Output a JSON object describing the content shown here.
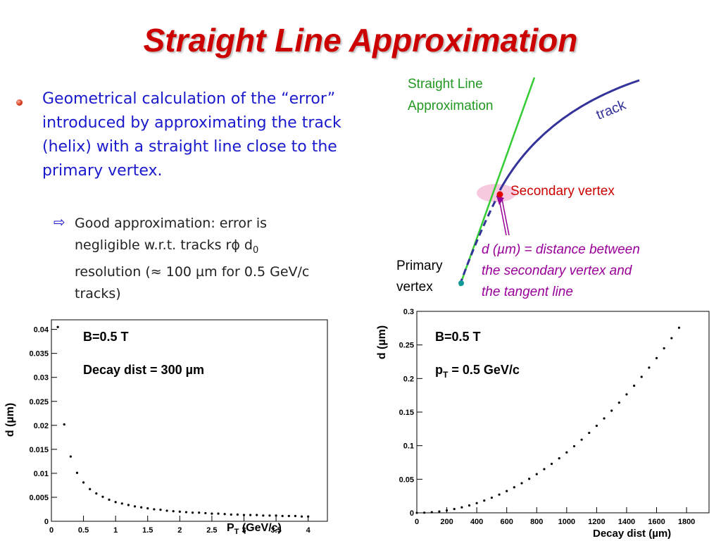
{
  "slide": {
    "title": "Straight Line Approximation",
    "bullet_main": "Geometrical calculation of the “error” introduced by approximating the track (helix) with a straight line close to the primary vertex.",
    "bullet_sub_part1": "Good approximation: error is negligible w.r.t. tracks r",
    "bullet_sub_phi": "ϕ",
    "bullet_sub_d": " d",
    "bullet_sub_d_sub": "0",
    "bullet_sub_part2": " resolution (≈ 100 ",
    "bullet_sub_mu": "µ",
    "bullet_sub_part3": "m for 0.5 GeV/c tracks)",
    "accent_color": "#cc0000",
    "text_blue": "#1a1acc"
  },
  "diagram": {
    "straight_line_label_1": "Straight Line",
    "straight_line_label_2": "Approximation",
    "track_label": "track",
    "secondary_vertex_label": "Secondary vertex",
    "primary_vertex_label_1": "Primary",
    "primary_vertex_label_2": "vertex",
    "d_label_1": "d (µm) = distance between",
    "d_label_2": "the secondary vertex and",
    "d_label_3": "the tangent line",
    "colors": {
      "line": "#33cc33",
      "track": "#33339a",
      "annotation": "#990099",
      "vertex": "#cc0000"
    }
  },
  "chart_data": [
    {
      "type": "scatter",
      "xlabel_main": "P",
      "xlabel_sub": "T",
      "xlabel_rest": " (GeV/c)",
      "ylabel": "d (µm)",
      "xlim": [
        0,
        4.3
      ],
      "ylim": [
        0,
        0.042
      ],
      "xticks": [
        "0",
        "0.5",
        "1",
        "1.5",
        "2",
        "2.5",
        "3",
        "3.5",
        "4"
      ],
      "yticks": [
        "0",
        "0.005",
        "0.01",
        "0.015",
        "0.02",
        "0.025",
        "0.03",
        "0.035",
        "0.04"
      ],
      "annotation_1": "B=0.5 T",
      "annotation_2a": "Decay dist = 300 ",
      "annotation_2mu": "µ",
      "annotation_2b": "m",
      "series": [
        {
          "x": [
            0.1,
            0.2,
            0.3,
            0.4,
            0.5,
            0.6,
            0.7,
            0.8,
            0.9,
            1.0,
            1.1,
            1.2,
            1.3,
            1.4,
            1.5,
            1.6,
            1.7,
            1.8,
            1.9,
            2.0,
            2.1,
            2.2,
            2.3,
            2.4,
            2.5,
            2.6,
            2.7,
            2.8,
            2.9,
            3.0,
            3.1,
            3.2,
            3.3,
            3.4,
            3.5,
            3.6,
            3.7,
            3.8,
            3.9,
            4.0
          ],
          "y": [
            0.0405,
            0.0202,
            0.0135,
            0.0101,
            0.0081,
            0.0067,
            0.0058,
            0.0051,
            0.0045,
            0.004,
            0.0037,
            0.0034,
            0.0031,
            0.0029,
            0.0027,
            0.0025,
            0.0024,
            0.0022,
            0.0021,
            0.002,
            0.0019,
            0.0018,
            0.0018,
            0.0017,
            0.0016,
            0.0016,
            0.0015,
            0.0014,
            0.0014,
            0.0013,
            0.0013,
            0.0013,
            0.0012,
            0.0012,
            0.0012,
            0.0011,
            0.0011,
            0.0011,
            0.001,
            0.001
          ]
        }
      ]
    },
    {
      "type": "scatter",
      "xlabel": "Decay dist (µm)",
      "ylabel": "d (µm)",
      "xlim": [
        0,
        1950
      ],
      "ylim": [
        0,
        0.3
      ],
      "xticks": [
        "0",
        "200",
        "400",
        "600",
        "800",
        "1000",
        "1200",
        "1400",
        "1600",
        "1800"
      ],
      "yticks": [
        "0",
        "0.05",
        "0.1",
        "0.15",
        "0.2",
        "0.25",
        "0.3"
      ],
      "annotation_1": "B=0.5 T",
      "annotation_2a": "p",
      "annotation_2sub": "T",
      "annotation_2b": " = 0.5 GeV/c",
      "series": [
        {
          "x": [
            0,
            50,
            100,
            150,
            200,
            250,
            300,
            350,
            400,
            450,
            500,
            550,
            600,
            650,
            700,
            750,
            800,
            850,
            900,
            950,
            1000,
            1050,
            1100,
            1150,
            1200,
            1250,
            1300,
            1350,
            1400,
            1450,
            1500,
            1550,
            1600,
            1650,
            1700,
            1750
          ],
          "y": [
            0.0,
            0.0002,
            0.0009,
            0.002,
            0.0036,
            0.0056,
            0.0081,
            0.011,
            0.0144,
            0.0182,
            0.0225,
            0.0272,
            0.0324,
            0.038,
            0.0441,
            0.0506,
            0.0576,
            0.065,
            0.0729,
            0.0812,
            0.09,
            0.0992,
            0.1089,
            0.119,
            0.1296,
            0.1406,
            0.1521,
            0.164,
            0.1764,
            0.1892,
            0.2025,
            0.2162,
            0.2304,
            0.245,
            0.2601,
            0.2756
          ]
        }
      ]
    }
  ]
}
